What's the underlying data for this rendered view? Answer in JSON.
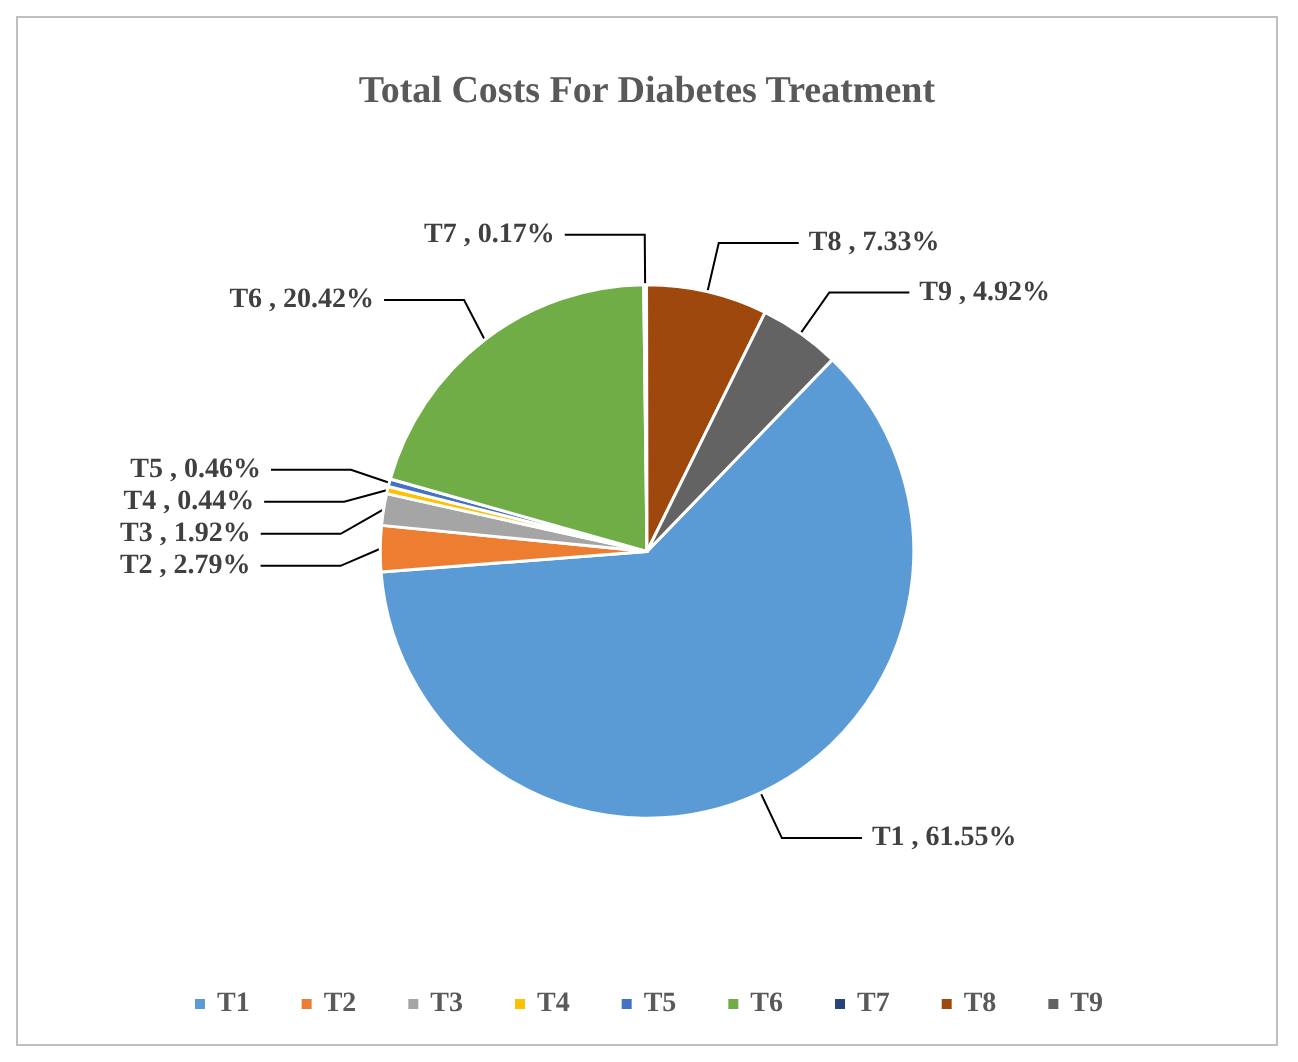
{
  "chart_data": {
    "type": "pie",
    "title": "Total Costs For Diabetes Treatment",
    "categories": [
      "T1",
      "T2",
      "T3",
      "T4",
      "T5",
      "T6",
      "T7",
      "T8",
      "T9"
    ],
    "values": [
      61.55,
      2.79,
      1.92,
      0.44,
      0.46,
      20.42,
      0.17,
      7.33,
      4.92
    ],
    "colors": [
      "#5b9bd5",
      "#ed7d31",
      "#a5a5a5",
      "#ffc000",
      "#4472c4",
      "#70ad47",
      "#264478",
      "#9e480e",
      "#636363"
    ],
    "value_labels": [
      "T1 , 61.55%",
      "T2 , 2.79%",
      "T3 , 1.92%",
      "T4 , 0.44%",
      "T5 , 0.46%",
      "T6 , 20.42%",
      "T7 , 0.17%",
      "T8 , 7.33%",
      "T9 , 4.92%"
    ],
    "legend": "bottom"
  }
}
